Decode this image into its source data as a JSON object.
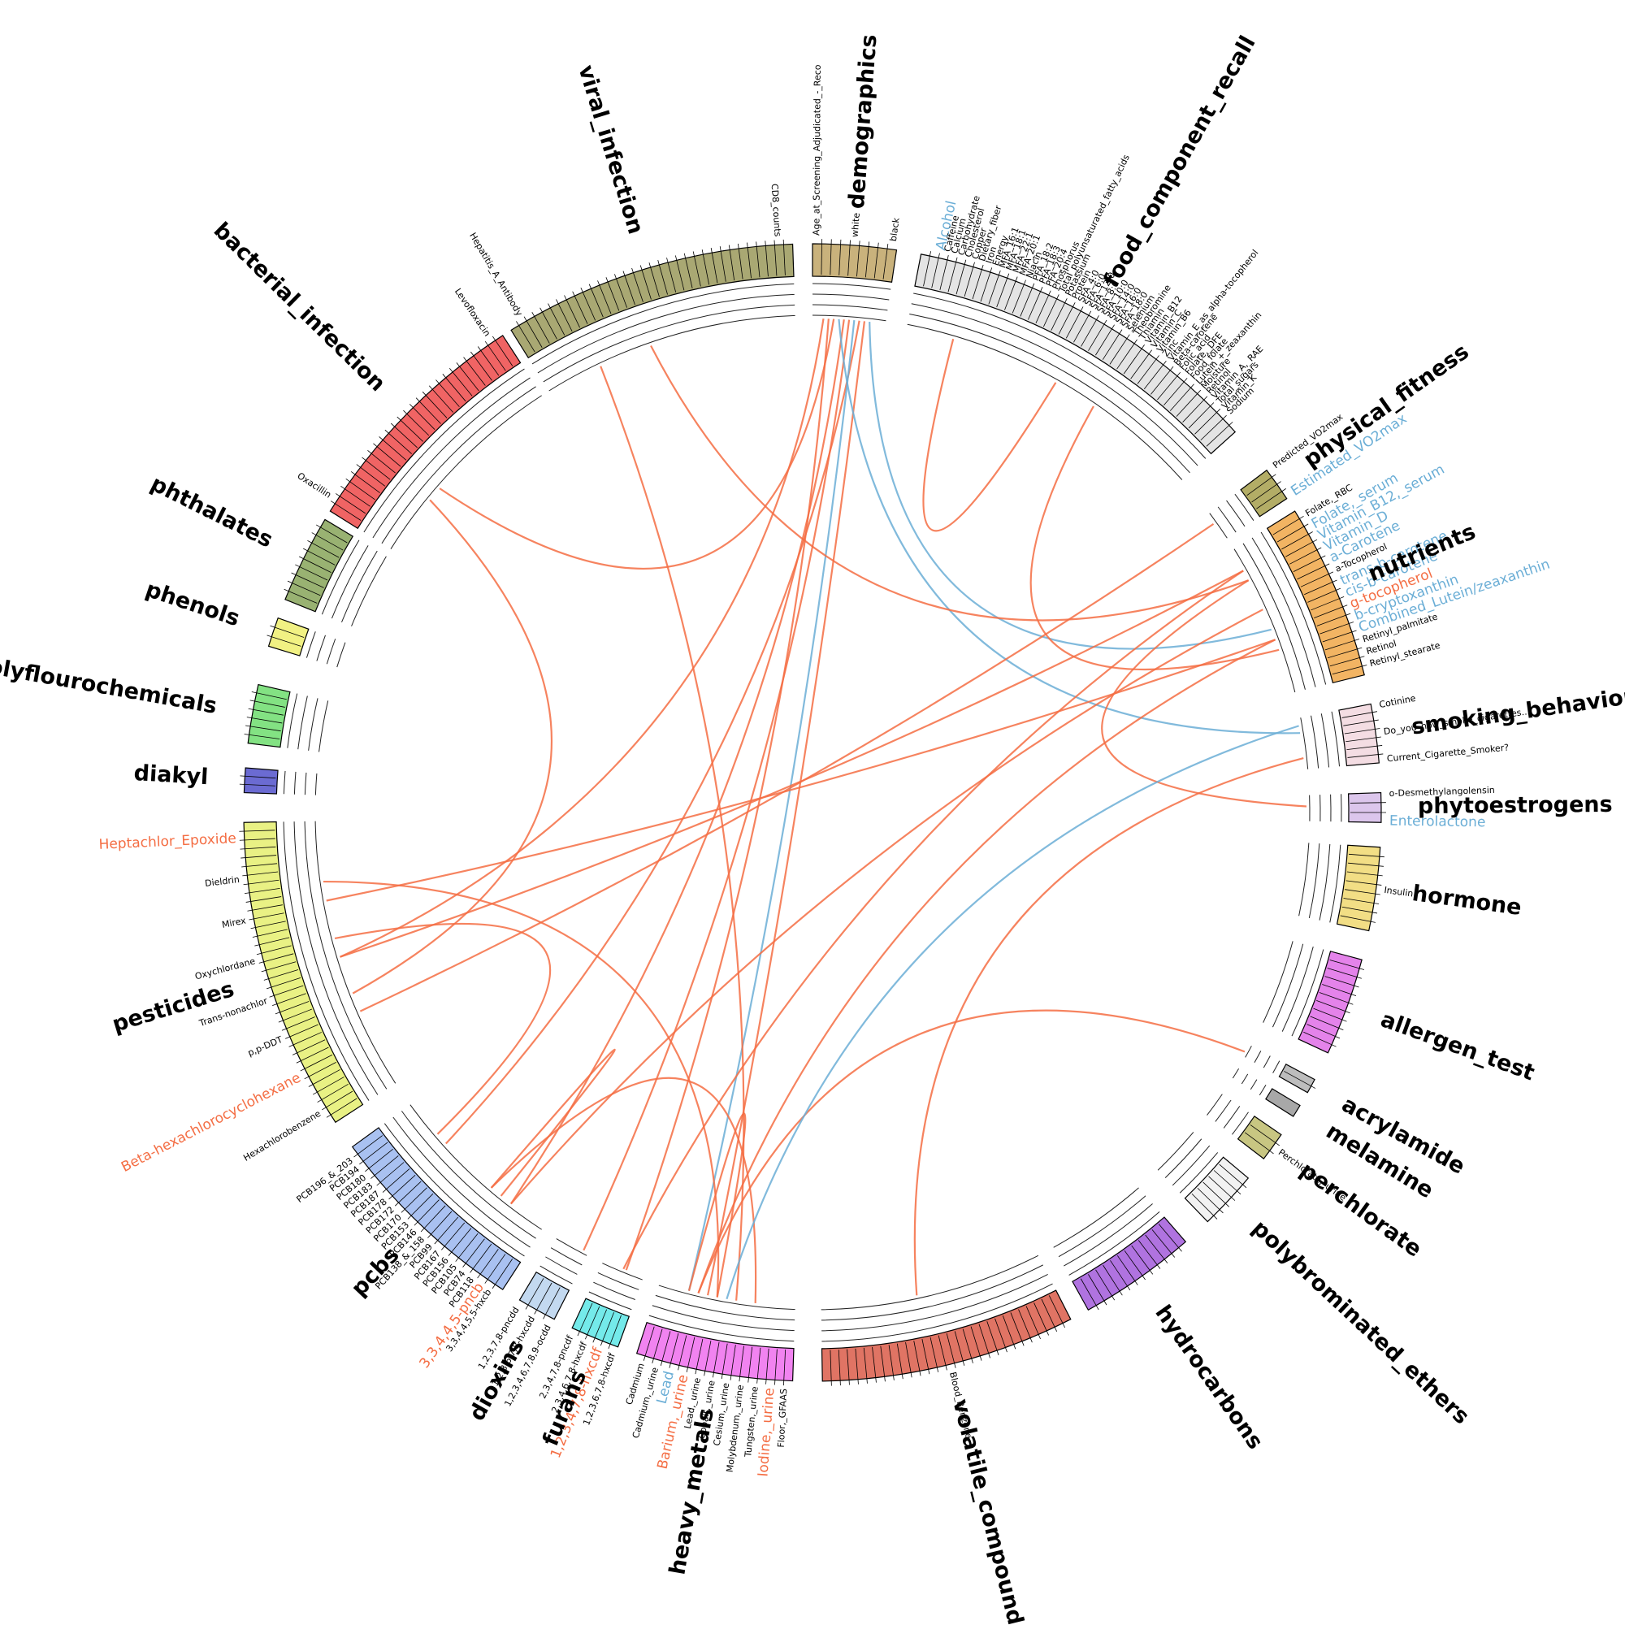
{
  "chart_data": {
    "type": "chord",
    "sectors": [
      {
        "name": "demographics",
        "color": "#c9b27c",
        "labels": [
          {
            "text": "Age_at_Screening_Adjudicated_-_Reco",
            "color": "#000"
          },
          {
            "text": "white",
            "color": "#000"
          },
          {
            "text": "black",
            "color": "#000"
          }
        ]
      },
      {
        "name": "food_component_recall",
        "color": "#e4e4e4",
        "labels": [
          {
            "text": "Alcohol",
            "color": "#6baed6"
          },
          {
            "text": "Caffeine",
            "color": "#000"
          },
          {
            "text": "Calcium",
            "color": "#000"
          },
          {
            "text": "Carbohydrate",
            "color": "#000"
          },
          {
            "text": "Cholesterol",
            "color": "#000"
          },
          {
            "text": "Copper",
            "color": "#000"
          },
          {
            "text": "Dietary_fiber",
            "color": "#000"
          },
          {
            "text": "Iron",
            "color": "#000"
          },
          {
            "text": "Energy",
            "color": "#000"
          },
          {
            "text": "MFA_16:1",
            "color": "#000"
          },
          {
            "text": "MFA_18:1",
            "color": "#000"
          },
          {
            "text": "MFA_22:1",
            "color": "#000"
          },
          {
            "text": "MFA_20:1",
            "color": "#000"
          },
          {
            "text": "Niacin",
            "color": "#000"
          },
          {
            "text": "PFA_18:2",
            "color": "#000"
          },
          {
            "text": "PFA_18:3",
            "color": "#000"
          },
          {
            "text": "PFA_20:4",
            "color": "#000"
          },
          {
            "text": "Phosphorus",
            "color": "#000"
          },
          {
            "text": "Total_polyunsaturated_fatty_acids",
            "color": "#000"
          },
          {
            "text": "Potassium",
            "color": "#000"
          },
          {
            "text": "Protein",
            "color": "#000"
          },
          {
            "text": "SFA_4:0",
            "color": "#000"
          },
          {
            "text": "SFA_6:0",
            "color": "#000"
          },
          {
            "text": "SFA_12:0",
            "color": "#000"
          },
          {
            "text": "SFA_8:0",
            "color": "#000"
          },
          {
            "text": "SFA_10:0",
            "color": "#000"
          },
          {
            "text": "SFA_14:0",
            "color": "#000"
          },
          {
            "text": "SFA_16:0",
            "color": "#000"
          },
          {
            "text": "SFA_18:0",
            "color": "#000"
          },
          {
            "text": "Selenium",
            "color": "#000"
          },
          {
            "text": "Theobromine",
            "color": "#000"
          },
          {
            "text": "Thiamin",
            "color": "#000"
          },
          {
            "text": "Vitamin_B12",
            "color": "#000"
          },
          {
            "text": "Vitamin_C",
            "color": "#000"
          },
          {
            "text": "Vitamin_B6",
            "color": "#000"
          },
          {
            "text": "Zinc",
            "color": "#000"
          },
          {
            "text": "Vitamin_E_as_alpha-tocopherol",
            "color": "#000"
          },
          {
            "text": "Beta-carotene",
            "color": "#000"
          },
          {
            "text": "Folic_acid",
            "color": "#000"
          },
          {
            "text": "Folate,_DFE",
            "color": "#000"
          },
          {
            "text": "Food_folate",
            "color": "#000"
          },
          {
            "text": "Lutein_+_zeaxanthin",
            "color": "#000"
          },
          {
            "text": "Moisture",
            "color": "#000"
          },
          {
            "text": "Retinol",
            "color": "#000"
          },
          {
            "text": "Vitamin_A,_RAE",
            "color": "#000"
          },
          {
            "text": "Total_sugars",
            "color": "#000"
          },
          {
            "text": "Vitamin_K",
            "color": "#000"
          },
          {
            "text": "Sodium",
            "color": "#000"
          }
        ]
      },
      {
        "name": "physical_fitness",
        "color": "#b3ad66",
        "labels": [
          {
            "text": "Predicted_VO2max",
            "color": "#000"
          },
          {
            "text": "Estimated_VO2max",
            "color": "#6baed6"
          }
        ]
      },
      {
        "name": "nutrients",
        "color": "#f2b463",
        "labels": [
          {
            "text": "Folate,_RBC",
            "color": "#000"
          },
          {
            "text": "Folate,_serum",
            "color": "#6baed6"
          },
          {
            "text": "Vitamin_B12,_serum",
            "color": "#6baed6"
          },
          {
            "text": "Vitamin_D",
            "color": "#6baed6"
          },
          {
            "text": "a-Carotene",
            "color": "#6baed6"
          },
          {
            "text": "a-Tocopherol",
            "color": "#000"
          },
          {
            "text": "trans-b-carotene",
            "color": "#6baed6"
          },
          {
            "text": "cis-b-carotene",
            "color": "#6baed6"
          },
          {
            "text": "g-tocopherol",
            "color": "#f46d43"
          },
          {
            "text": "b-cryptoxanthin",
            "color": "#6baed6"
          },
          {
            "text": "Combined_Lutein/zeaxanthin",
            "color": "#6baed6"
          },
          {
            "text": "Retinyl_palmitate",
            "color": "#000"
          },
          {
            "text": "Retinol",
            "color": "#000"
          },
          {
            "text": "Retinyl_stearate",
            "color": "#000"
          }
        ]
      },
      {
        "name": "smoking_behavior",
        "color": "#f4dde3",
        "labels": [
          {
            "text": "Cotinine",
            "color": "#000"
          },
          {
            "text": "Do_you_now_smoke_cigarettes...",
            "color": "#000"
          },
          {
            "text": "Current_Cigarette_Smoker?",
            "color": "#000"
          }
        ]
      },
      {
        "name": "phytoestrogens",
        "color": "#dcc6ec",
        "labels": [
          {
            "text": "o-Desmethylangolensin",
            "color": "#000"
          },
          {
            "text": "Enterolactone",
            "color": "#6baed6"
          }
        ]
      },
      {
        "name": "hormone",
        "color": "#f2de85",
        "labels": [
          {
            "text": "Insulin",
            "color": "#000"
          }
        ]
      },
      {
        "name": "allergen_test",
        "color": "#e483ea",
        "labels": []
      },
      {
        "name": "acrylamide",
        "color": "#bdbdbd",
        "labels": []
      },
      {
        "name": "melamine",
        "color": "#a8a8a8",
        "labels": []
      },
      {
        "name": "perchlorate",
        "color": "#c8c682",
        "labels": [
          {
            "text": "Perchlorate,_urine",
            "color": "#000"
          }
        ]
      },
      {
        "name": "polybrominated_ethers",
        "color": "#f2f2f2",
        "labels": []
      },
      {
        "name": "hydrocarbons",
        "color": "#b073e0",
        "labels": []
      },
      {
        "name": "volatile_compounds",
        "color": "#e07464",
        "labels": [
          {
            "text": "Blood_Benzene",
            "color": "#000"
          }
        ]
      },
      {
        "name": "heavy_metals",
        "color": "#f183f0",
        "labels": [
          {
            "text": "Floor,_GFAAS",
            "color": "#000"
          },
          {
            "text": "Iodine,_urine",
            "color": "#f46d43"
          },
          {
            "text": "Tungsten,_urine",
            "color": "#000"
          },
          {
            "text": "Molybdenum,_urine",
            "color": "#000"
          },
          {
            "text": "Cesium,_urine",
            "color": "#000"
          },
          {
            "text": "Cobalt,_urine",
            "color": "#000"
          },
          {
            "text": "Lead,_urine",
            "color": "#000"
          },
          {
            "text": "Barium,_urine",
            "color": "#f46d43"
          },
          {
            "text": "Lead",
            "color": "#6baed6"
          },
          {
            "text": "Cadmium,_urine",
            "color": "#000"
          },
          {
            "text": "Cadmium",
            "color": "#000"
          }
        ]
      },
      {
        "name": "furans",
        "color": "#74eaea",
        "labels": [
          {
            "text": "1,2,3,6,7,8-hxcdf",
            "color": "#000"
          },
          {
            "text": "1,2,3,4,7,8-hxcdf",
            "color": "#f46d43"
          },
          {
            "text": "2,3,4,6,7,8-hxcdf",
            "color": "#000"
          },
          {
            "text": "2,3,4,7,8-pncdf",
            "color": "#000"
          }
        ]
      },
      {
        "name": "dioxins",
        "color": "#c3d9f0",
        "labels": [
          {
            "text": "1,2,3,4,6,7,8,9-ocdd",
            "color": "#000"
          },
          {
            "text": "1,2,3,6,7,8-hxcdd",
            "color": "#000"
          },
          {
            "text": "1,2,3,7,8-pncdd",
            "color": "#000"
          }
        ]
      },
      {
        "name": "pcbs",
        "color": "#a9c1f1",
        "labels": [
          {
            "text": "3,3,4,4,5,5-hxcb",
            "color": "#000"
          },
          {
            "text": "3,3,4,4,5-pncb",
            "color": "#f46d43"
          },
          {
            "text": "PCB118",
            "color": "#000"
          },
          {
            "text": "PCB74",
            "color": "#000"
          },
          {
            "text": "PCB105",
            "color": "#000"
          },
          {
            "text": "PCB156",
            "color": "#000"
          },
          {
            "text": "PCB167",
            "color": "#000"
          },
          {
            "text": "PCB99",
            "color": "#000"
          },
          {
            "text": "PCB138_&_158",
            "color": "#000"
          },
          {
            "text": "PCB146",
            "color": "#000"
          },
          {
            "text": "PCB153",
            "color": "#000"
          },
          {
            "text": "PCB170",
            "color": "#000"
          },
          {
            "text": "PCB172",
            "color": "#000"
          },
          {
            "text": "PCB178",
            "color": "#000"
          },
          {
            "text": "PCB187",
            "color": "#000"
          },
          {
            "text": "PCB183",
            "color": "#000"
          },
          {
            "text": "PCB180",
            "color": "#000"
          },
          {
            "text": "PCB194",
            "color": "#000"
          },
          {
            "text": "PCB196_&_203",
            "color": "#000"
          }
        ]
      },
      {
        "name": "pesticides",
        "color": "#e9f184",
        "labels": [
          {
            "text": "Hexachlorobenzene",
            "color": "#000"
          },
          {
            "text": "Beta-hexachlorocyclohexane",
            "color": "#f46d43"
          },
          {
            "text": "p,p-DDT",
            "color": "#000"
          },
          {
            "text": "Trans-nonachlor",
            "color": "#000"
          },
          {
            "text": "Oxychlordane",
            "color": "#000"
          },
          {
            "text": "Mirex",
            "color": "#000"
          },
          {
            "text": "Dieldrin",
            "color": "#000"
          },
          {
            "text": "Heptachlor_Epoxide",
            "color": "#f46d43"
          }
        ]
      },
      {
        "name": "diakyl",
        "color": "#6b6bd2",
        "labels": []
      },
      {
        "name": "polyflourochemicals",
        "color": "#83e283",
        "labels": []
      },
      {
        "name": "phenols",
        "color": "#f1f183",
        "labels": []
      },
      {
        "name": "phthalates",
        "color": "#99b272",
        "labels": []
      },
      {
        "name": "bacterial_infection",
        "color": "#f06464",
        "labels": [
          {
            "text": "Oxacillin",
            "color": "#000"
          },
          {
            "text": "Levofloxacin",
            "color": "#000"
          }
        ]
      },
      {
        "name": "viral_infection",
        "color": "#a9a873",
        "labels": [
          {
            "text": "Hepatitis_A_Antibody",
            "color": "#000"
          },
          {
            "text": "CD8_counts",
            "color": "#000"
          }
        ]
      }
    ],
    "links": [
      {
        "from": "demographics",
        "to": "pesticides",
        "color": "#f46d43"
      },
      {
        "from": "demographics",
        "to": "pcbs",
        "color": "#f46d43"
      },
      {
        "from": "demographics",
        "to": "pcbs",
        "color": "#f46d43"
      },
      {
        "from": "demographics",
        "to": "furans",
        "color": "#f46d43"
      },
      {
        "from": "demographics",
        "to": "heavy_metals",
        "color": "#f46d43"
      },
      {
        "from": "demographics",
        "to": "dioxins",
        "color": "#f46d43"
      },
      {
        "from": "demographics",
        "to": "bacterial_infection",
        "color": "#f46d43"
      },
      {
        "from": "demographics",
        "to": "nutrients",
        "color": "#6baed6"
      },
      {
        "from": "demographics",
        "to": "heavy_metals",
        "color": "#6baed6"
      },
      {
        "from": "demographics",
        "to": "smoking_behavior",
        "color": "#6baed6"
      },
      {
        "from": "food_component_recall",
        "to": "food_component_recall",
        "color": "#f46d43"
      },
      {
        "from": "food_component_recall",
        "to": "nutrients",
        "color": "#f46d43"
      },
      {
        "from": "viral_infection",
        "to": "nutrients",
        "color": "#f46d43"
      },
      {
        "from": "viral_infection",
        "to": "heavy_metals",
        "color": "#f46d43"
      },
      {
        "from": "pesticides",
        "to": "nutrients",
        "color": "#f46d43"
      },
      {
        "from": "pesticides",
        "to": "nutrients",
        "color": "#f46d43"
      },
      {
        "from": "pesticides",
        "to": "physical_fitness",
        "color": "#f46d43"
      },
      {
        "from": "pesticides",
        "to": "heavy_metals",
        "color": "#f46d43"
      },
      {
        "from": "pesticides",
        "to": "pcbs",
        "color": "#f46d43"
      },
      {
        "from": "pcbs",
        "to": "heavy_metals",
        "color": "#f46d43"
      },
      {
        "from": "nutrients",
        "to": "furans",
        "color": "#f46d43"
      },
      {
        "from": "nutrients",
        "to": "heavy_metals",
        "color": "#f46d43"
      },
      {
        "from": "nutrients",
        "to": "pcbs",
        "color": "#f46d43"
      },
      {
        "from": "nutrients",
        "to": "phytoestrogens",
        "color": "#f46d43"
      },
      {
        "from": "heavy_metals",
        "to": "acrylamide",
        "color": "#f46d43"
      },
      {
        "from": "heavy_metals",
        "to": "smoking_behavior",
        "color": "#6baed6"
      },
      {
        "from": "bacterial_infection",
        "to": "pesticides",
        "color": "#f46d43"
      },
      {
        "from": "smoking_behavior",
        "to": "volatile_compounds",
        "color": "#f46d43"
      },
      {
        "from": "heavy_metals",
        "to": "heavy_metals",
        "color": "#f46d43"
      },
      {
        "from": "pcbs",
        "to": "pcbs",
        "color": "#f46d43"
      }
    ]
  }
}
